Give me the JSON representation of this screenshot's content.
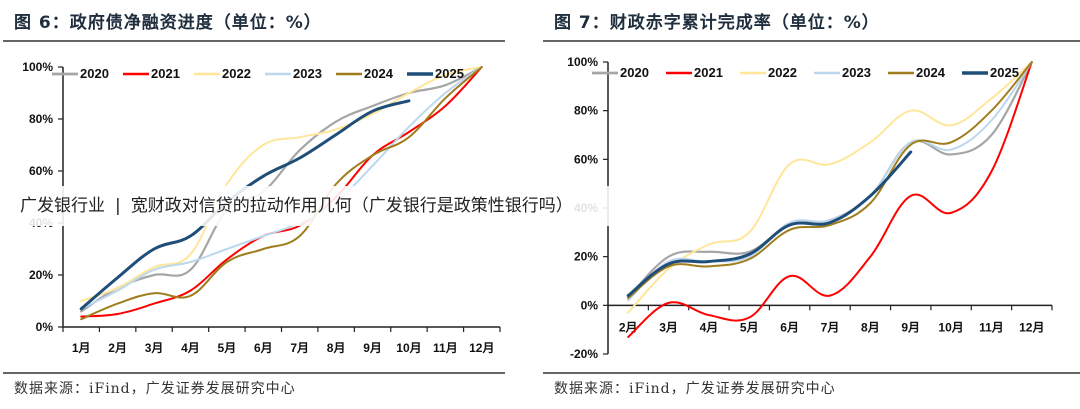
{
  "left_figure": {
    "title": "图 6：政府债净融资进度（单位：%）",
    "source": "数据来源：iFind，广发证券发展研究中心"
  },
  "right_figure": {
    "title": "图 7：财政赤字累计完成率（单位：%）",
    "source": "数据来源：iFind，广发证券发展研究中心"
  },
  "overlay_banner": {
    "section": "广发银行业",
    "divider": "|",
    "headline": "宽财政对信贷的拉动作用几何（广发银行是政策性银行吗）"
  },
  "colors": {
    "2020": "#a6a6a6",
    "2021": "#ff0000",
    "2022": "#ffe699",
    "2023": "#bdd7ee",
    "2024": "#a07d1c",
    "2025": "#1f4e79"
  },
  "chart_data": [
    {
      "type": "line",
      "title": "政府债净融资进度（单位：%）",
      "xlabel": "",
      "ylabel": "",
      "x": [
        "1月",
        "2月",
        "3月",
        "4月",
        "5月",
        "6月",
        "7月",
        "8月",
        "9月",
        "10月",
        "11月",
        "12月"
      ],
      "yticks": [
        "0%",
        "20%",
        "40%",
        "60%",
        "80%",
        "100%"
      ],
      "ylim": [
        0,
        100
      ],
      "legend": "top",
      "grid": false,
      "series": [
        {
          "name": "2020",
          "values": [
            6,
            15,
            20,
            22,
            45,
            52,
            68,
            79,
            85,
            90,
            93,
            100
          ]
        },
        {
          "name": "2021",
          "values": [
            4,
            5,
            9,
            14,
            26,
            35,
            39,
            50,
            66,
            75,
            85,
            100
          ]
        },
        {
          "name": "2022",
          "values": [
            10,
            15,
            23,
            28,
            55,
            70,
            73,
            76,
            82,
            90,
            97,
            100
          ]
        },
        {
          "name": "2023",
          "values": [
            7,
            14,
            22,
            25,
            30,
            35,
            40,
            48,
            62,
            77,
            90,
            100
          ]
        },
        {
          "name": "2024",
          "values": [
            3,
            9,
            13,
            12,
            25,
            30,
            35,
            55,
            66,
            73,
            88,
            100
          ]
        },
        {
          "name": "2025",
          "values": [
            7,
            19,
            30,
            35,
            48,
            58,
            65,
            74,
            83,
            87
          ]
        }
      ]
    },
    {
      "type": "line",
      "title": "财政赤字累计完成率（单位：%）",
      "xlabel": "",
      "ylabel": "",
      "x": [
        "2月",
        "3月",
        "4月",
        "5月",
        "6月",
        "7月",
        "8月",
        "9月",
        "10月",
        "11月",
        "12月"
      ],
      "yticks": [
        "-20%",
        "0%",
        "20%",
        "40%",
        "60%",
        "80%",
        "100%"
      ],
      "ylim": [
        -20,
        100
      ],
      "legend": "top",
      "grid": false,
      "series": [
        {
          "name": "2020",
          "values": [
            3,
            20,
            22,
            22,
            33,
            35,
            45,
            67,
            62,
            70,
            100
          ]
        },
        {
          "name": "2021",
          "values": [
            -13,
            1,
            -4,
            -5,
            12,
            4,
            20,
            45,
            38,
            55,
            100
          ]
        },
        {
          "name": "2022",
          "values": [
            -3,
            15,
            25,
            30,
            58,
            58,
            67,
            80,
            74,
            85,
            100
          ]
        },
        {
          "name": "2023",
          "values": [
            2,
            18,
            18,
            20,
            34,
            35,
            45,
            67,
            64,
            76,
            100
          ]
        },
        {
          "name": "2024",
          "values": [
            3,
            16,
            16,
            19,
            31,
            33,
            42,
            66,
            67,
            80,
            100
          ]
        },
        {
          "name": "2025",
          "values": [
            4,
            17,
            18,
            21,
            33,
            34,
            45,
            63
          ]
        }
      ]
    }
  ]
}
